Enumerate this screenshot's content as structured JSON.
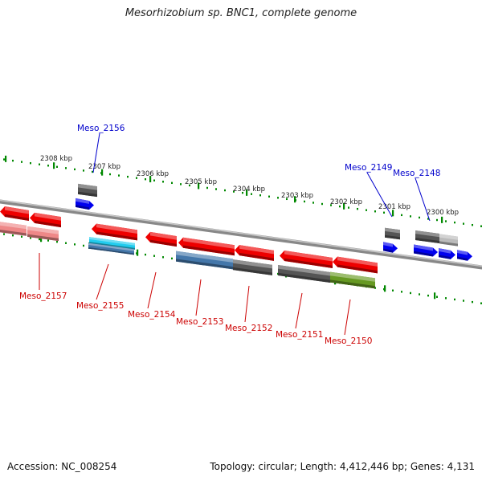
{
  "title": "Mesorhizobium sp. BNC1, complete genome",
  "footer": {
    "accession": "Accession: NC_008254",
    "stats": "Topology: circular; Length: 4,412,446 bp; Genes: 4,131"
  },
  "colors": {
    "forward_gene": "#0000ee",
    "reverse_gene": "#ee0000",
    "forward_label": "#0000cc",
    "reverse_label": "#cc0000",
    "scale": "#008800",
    "backbone": "#888888",
    "feature_gray": "#555555",
    "feature_lightgray": "#bbbbbb",
    "feature_cyan": "#22ccee",
    "feature_steelblue": "#4477aa",
    "feature_olive": "#669922",
    "feature_pink": "#ee8888"
  },
  "scale_labels": [
    "2308 kbp",
    "2307 kbp",
    "2306 kbp",
    "2305 kbp",
    "2304 kbp",
    "2303 kbp",
    "2302 kbp",
    "2301 kbp",
    "2300 kbp"
  ],
  "forward_gene_labels": [
    "Meso_2156",
    "Meso_2149",
    "Meso_2148"
  ],
  "reverse_gene_labels": [
    "Meso_2157",
    "Meso_2155",
    "Meso_2154",
    "Meso_2153",
    "Meso_2152",
    "Meso_2151",
    "Meso_2150"
  ]
}
